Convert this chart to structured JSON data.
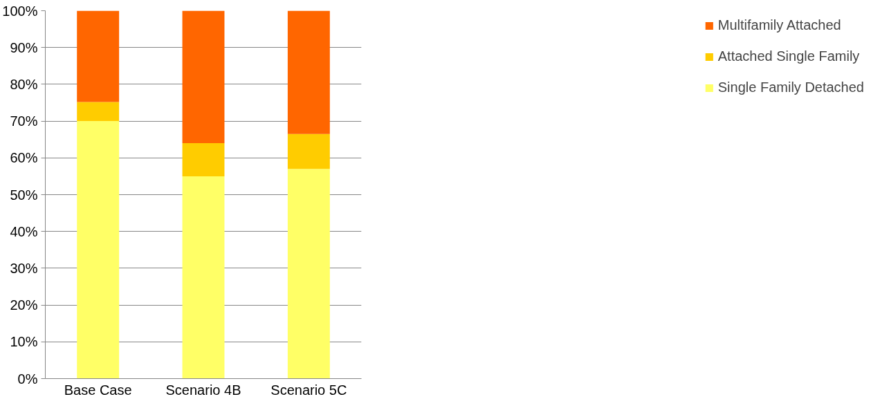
{
  "chart_data": {
    "type": "bar",
    "stacked": true,
    "categories": [
      "Base Case",
      "Scenario 4B",
      "Scenario 5C"
    ],
    "series": [
      {
        "name": "Single Family Detached",
        "color": "#ffff66",
        "values": [
          70,
          55,
          57
        ]
      },
      {
        "name": "Attached Single Family",
        "color": "#ffcc00",
        "values": [
          5.2,
          9,
          9.5
        ]
      },
      {
        "name": "Multifamily Attached",
        "color": "#ff6600",
        "values": [
          24.8,
          36,
          33.5
        ]
      }
    ],
    "ylim": [
      0,
      100
    ],
    "yticks": [
      {
        "value": 0,
        "label": "0%"
      },
      {
        "value": 10,
        "label": "10%"
      },
      {
        "value": 20,
        "label": "20%"
      },
      {
        "value": 30,
        "label": "30%"
      },
      {
        "value": 40,
        "label": "40%"
      },
      {
        "value": 50,
        "label": "50%"
      },
      {
        "value": 60,
        "label": "60%"
      },
      {
        "value": 70,
        "label": "70%"
      },
      {
        "value": 80,
        "label": "80%"
      },
      {
        "value": 90,
        "label": "90%"
      },
      {
        "value": 100,
        "label": "100%"
      }
    ],
    "grid": "y",
    "legend": "right"
  }
}
